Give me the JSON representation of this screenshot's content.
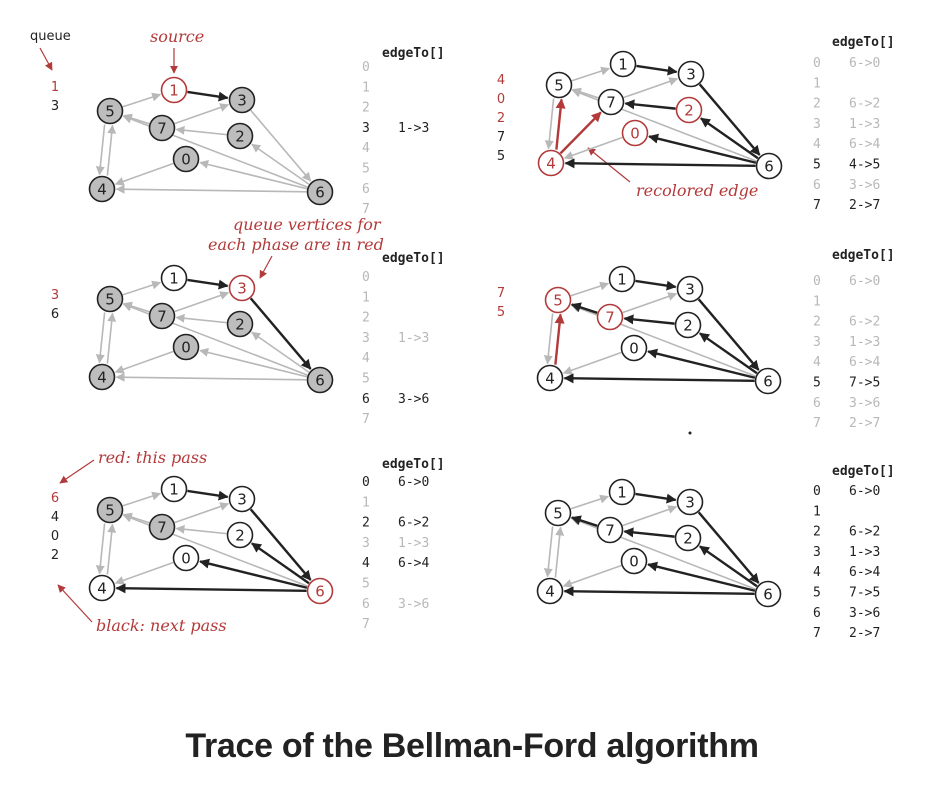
{
  "caption": "Trace of the Bellman-Ford algorithm",
  "colors": {
    "red": "#b33a3a",
    "black": "#222222",
    "gray_text": "#b8b8b8",
    "gray_edge": "#b8b8b8",
    "gray_fill": "#bdbdbd"
  },
  "annotations": {
    "queue": "queue",
    "source": "source",
    "recolored_edge": "recolored edge",
    "queue_vertices_line1": "queue vertices for",
    "queue_vertices_line2": "each phase are in red",
    "red_this_pass": "red: this pass",
    "black_next_pass": "black: next pass"
  },
  "graph_edges": [
    [
      1,
      3
    ],
    [
      3,
      6
    ],
    [
      6,
      2
    ],
    [
      6,
      0
    ],
    [
      6,
      4
    ],
    [
      6,
      5
    ],
    [
      2,
      7
    ],
    [
      0,
      4
    ],
    [
      7,
      5
    ],
    [
      5,
      1
    ],
    [
      4,
      5
    ],
    [
      5,
      4
    ],
    [
      7,
      3
    ]
  ],
  "panels": [
    {
      "id": "p1",
      "queue": [
        {
          "text": "1",
          "color": "red"
        },
        {
          "text": "3",
          "color": "black"
        }
      ],
      "vertex_state": {
        "0": "gray",
        "1": "red",
        "2": "gray",
        "3": "gray",
        "4": "gray",
        "5": "gray",
        "6": "gray",
        "7": "gray"
      },
      "dark_edges": [
        [
          1,
          3
        ]
      ],
      "red_edges": [],
      "edgeTo_title": "edgeTo[]",
      "edgeTo": [
        {
          "v": "0",
          "e": "",
          "s": "light"
        },
        {
          "v": "1",
          "e": "",
          "s": "light"
        },
        {
          "v": "2",
          "e": "",
          "s": "light"
        },
        {
          "v": "3",
          "e": "1->3",
          "s": "dark"
        },
        {
          "v": "4",
          "e": "",
          "s": "light"
        },
        {
          "v": "5",
          "e": "",
          "s": "light"
        },
        {
          "v": "6",
          "e": "",
          "s": "light"
        },
        {
          "v": "7",
          "e": "",
          "s": "light"
        }
      ]
    },
    {
      "id": "p2",
      "queue": [
        {
          "text": "4",
          "color": "red"
        },
        {
          "text": "0",
          "color": "red"
        },
        {
          "text": "2",
          "color": "red"
        },
        {
          "text": "7",
          "color": "black"
        },
        {
          "text": "5",
          "color": "black"
        }
      ],
      "vertex_state": {
        "0": "red",
        "1": "white",
        "2": "red",
        "3": "white",
        "4": "red",
        "5": "white",
        "6": "white",
        "7": "white"
      },
      "dark_edges": [
        [
          1,
          3
        ],
        [
          3,
          6
        ],
        [
          6,
          2
        ],
        [
          6,
          0
        ],
        [
          6,
          4
        ],
        [
          2,
          7
        ]
      ],
      "red_edges": [
        [
          4,
          7
        ],
        [
          4,
          5
        ]
      ],
      "edgeTo_title": "edgeTo[]",
      "edgeTo": [
        {
          "v": "0",
          "e": "6->0",
          "s": "light"
        },
        {
          "v": "1",
          "e": "",
          "s": "light"
        },
        {
          "v": "2",
          "e": "6->2",
          "s": "light"
        },
        {
          "v": "3",
          "e": "1->3",
          "s": "light"
        },
        {
          "v": "4",
          "e": "6->4",
          "s": "light"
        },
        {
          "v": "5",
          "e": "4->5",
          "s": "dark"
        },
        {
          "v": "6",
          "e": "3->6",
          "s": "light"
        },
        {
          "v": "7",
          "e": "2->7",
          "s": "dark"
        }
      ]
    },
    {
      "id": "p3",
      "queue": [
        {
          "text": "3",
          "color": "red"
        },
        {
          "text": "6",
          "color": "black"
        }
      ],
      "vertex_state": {
        "0": "gray",
        "1": "white",
        "2": "gray",
        "3": "red",
        "4": "gray",
        "5": "gray",
        "6": "gray",
        "7": "gray"
      },
      "dark_edges": [
        [
          1,
          3
        ],
        [
          3,
          6
        ]
      ],
      "red_edges": [],
      "edgeTo_title": "edgeTo[]",
      "edgeTo": [
        {
          "v": "0",
          "e": "",
          "s": "light"
        },
        {
          "v": "1",
          "e": "",
          "s": "light"
        },
        {
          "v": "2",
          "e": "",
          "s": "light"
        },
        {
          "v": "3",
          "e": "1->3",
          "s": "light"
        },
        {
          "v": "4",
          "e": "",
          "s": "light"
        },
        {
          "v": "5",
          "e": "",
          "s": "light"
        },
        {
          "v": "6",
          "e": "3->6",
          "s": "dark"
        },
        {
          "v": "7",
          "e": "",
          "s": "light"
        }
      ]
    },
    {
      "id": "p4",
      "queue": [
        {
          "text": "7",
          "color": "red"
        },
        {
          "text": "5",
          "color": "red"
        }
      ],
      "vertex_state": {
        "0": "white",
        "1": "white",
        "2": "white",
        "3": "white",
        "4": "white",
        "5": "red",
        "6": "white",
        "7": "red"
      },
      "dark_edges": [
        [
          1,
          3
        ],
        [
          3,
          6
        ],
        [
          6,
          2
        ],
        [
          6,
          0
        ],
        [
          6,
          4
        ],
        [
          2,
          7
        ],
        [
          7,
          5
        ]
      ],
      "red_edges": [
        [
          4,
          5
        ]
      ],
      "edgeTo_title": "edgeTo[]",
      "edgeTo": [
        {
          "v": "0",
          "e": "6->0",
          "s": "light"
        },
        {
          "v": "1",
          "e": "",
          "s": "light"
        },
        {
          "v": "2",
          "e": "6->2",
          "s": "light"
        },
        {
          "v": "3",
          "e": "1->3",
          "s": "light"
        },
        {
          "v": "4",
          "e": "6->4",
          "s": "light"
        },
        {
          "v": "5",
          "e": "7->5",
          "s": "dark"
        },
        {
          "v": "6",
          "e": "3->6",
          "s": "light"
        },
        {
          "v": "7",
          "e": "2->7",
          "s": "light"
        }
      ]
    },
    {
      "id": "p5",
      "queue": [
        {
          "text": "6",
          "color": "red"
        },
        {
          "text": "4",
          "color": "black"
        },
        {
          "text": "0",
          "color": "black"
        },
        {
          "text": "2",
          "color": "black"
        }
      ],
      "vertex_state": {
        "0": "white",
        "1": "white",
        "2": "white",
        "3": "white",
        "4": "white",
        "5": "gray",
        "6": "red",
        "7": "gray"
      },
      "dark_edges": [
        [
          1,
          3
        ],
        [
          3,
          6
        ],
        [
          6,
          2
        ],
        [
          6,
          0
        ],
        [
          6,
          4
        ]
      ],
      "red_edges": [],
      "edgeTo_title": "edgeTo[]",
      "edgeTo": [
        {
          "v": "0",
          "e": "6->0",
          "s": "dark"
        },
        {
          "v": "1",
          "e": "",
          "s": "light"
        },
        {
          "v": "2",
          "e": "6->2",
          "s": "dark"
        },
        {
          "v": "3",
          "e": "1->3",
          "s": "light"
        },
        {
          "v": "4",
          "e": "6->4",
          "s": "dark"
        },
        {
          "v": "5",
          "e": "",
          "s": "light"
        },
        {
          "v": "6",
          "e": "3->6",
          "s": "light"
        },
        {
          "v": "7",
          "e": "",
          "s": "light"
        }
      ]
    },
    {
      "id": "p6",
      "queue": [],
      "vertex_state": {
        "0": "white",
        "1": "white",
        "2": "white",
        "3": "white",
        "4": "white",
        "5": "white",
        "6": "white",
        "7": "white"
      },
      "dark_edges": [
        [
          1,
          3
        ],
        [
          3,
          6
        ],
        [
          6,
          2
        ],
        [
          6,
          0
        ],
        [
          6,
          4
        ],
        [
          2,
          7
        ],
        [
          7,
          5
        ]
      ],
      "red_edges": [],
      "edgeTo_title": "edgeTo[]",
      "edgeTo": [
        {
          "v": "0",
          "e": "6->0",
          "s": "dark"
        },
        {
          "v": "1",
          "e": "",
          "s": "dark"
        },
        {
          "v": "2",
          "e": "6->2",
          "s": "dark"
        },
        {
          "v": "3",
          "e": "1->3",
          "s": "dark"
        },
        {
          "v": "4",
          "e": "6->4",
          "s": "dark"
        },
        {
          "v": "5",
          "e": "7->5",
          "s": "dark"
        },
        {
          "v": "6",
          "e": "3->6",
          "s": "dark"
        },
        {
          "v": "7",
          "e": "2->7",
          "s": "dark"
        }
      ]
    }
  ]
}
